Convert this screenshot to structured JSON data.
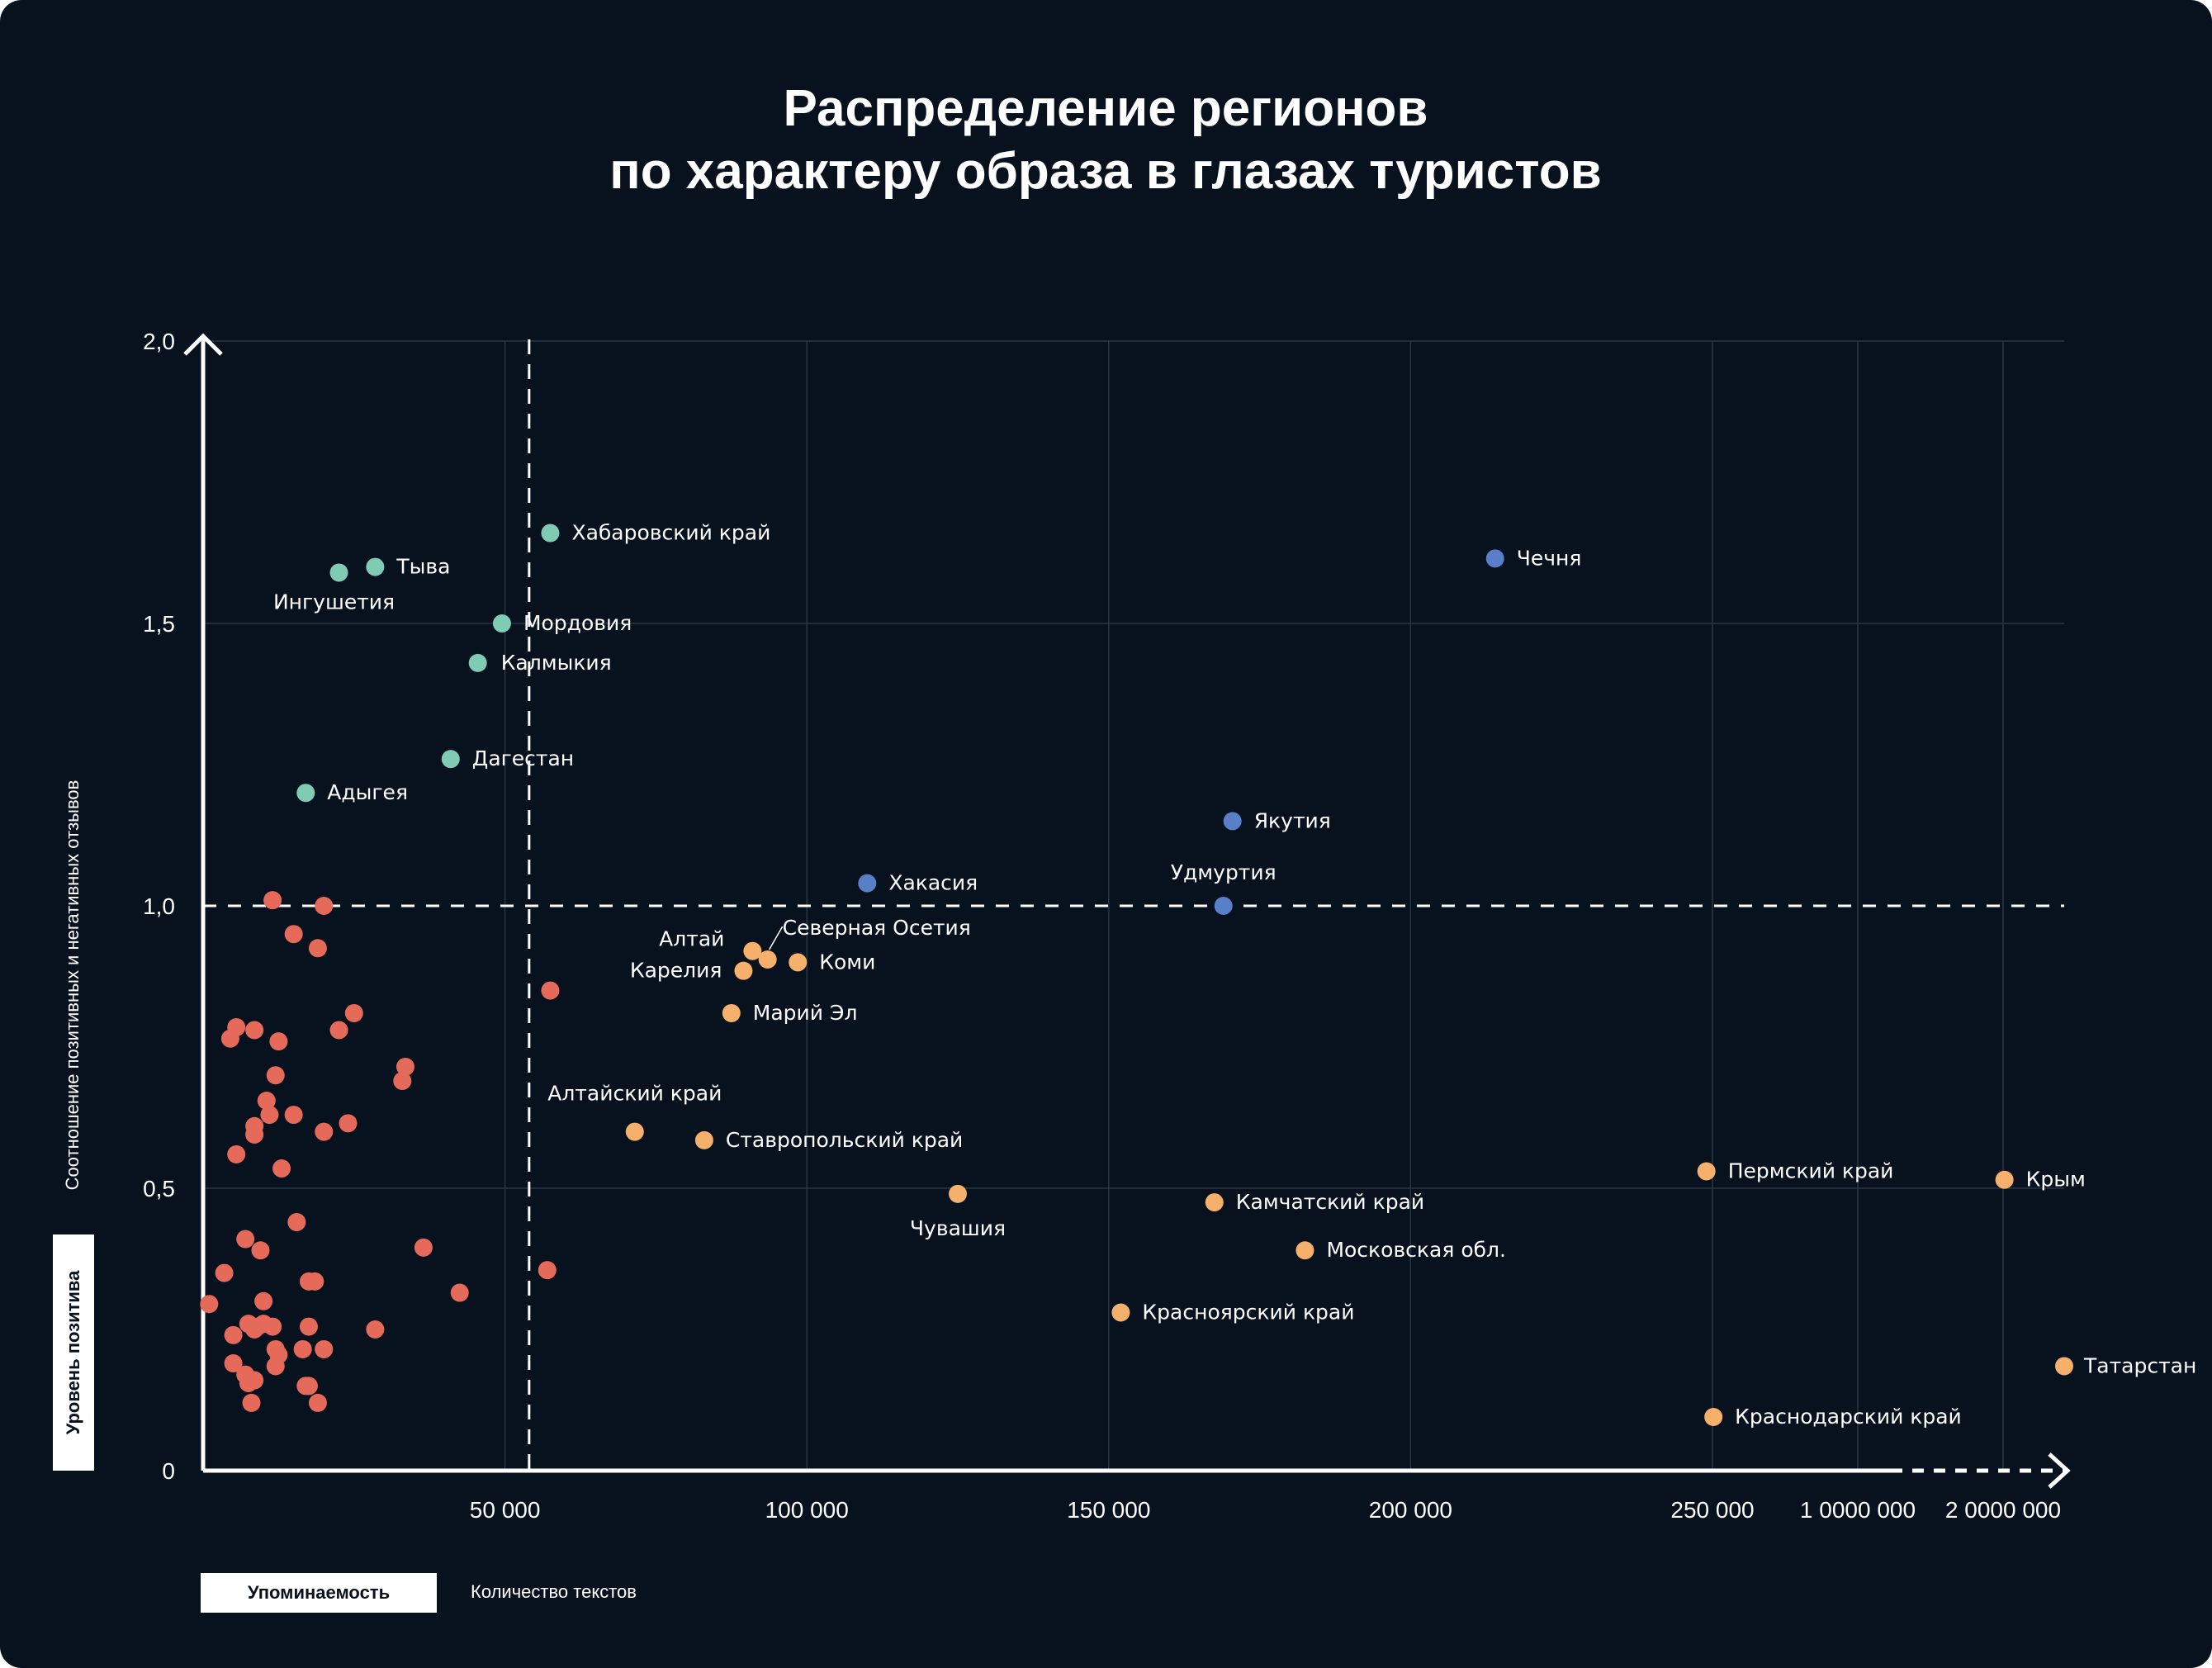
{
  "chart_data": {
    "type": "scatter",
    "title_lines": [
      "Распределение регионов",
      "по характеру образа в глазах туристов"
    ],
    "ylabel": "Соотношение позитивных и негативных отзывов",
    "ylabel_box": "Уровень позитива",
    "xlabel_box": "Упоминаемость",
    "xlabel": "Количество текстов",
    "x_tick_labels": [
      "50 000",
      "100 000",
      "150 000",
      "200 000",
      "250 000",
      "1 0000 000",
      "2 0000 000"
    ],
    "y_tick_labels": [
      "0",
      "0,5",
      "1,0",
      "1,5",
      "2,0"
    ],
    "ylim": [
      0,
      2
    ],
    "grid": true,
    "thresholds": {
      "x": 54000,
      "y": 1.0
    },
    "colors": {
      "background": "#08111e",
      "teal": "#7fcbb3",
      "blue": "#5a7fc9",
      "orange": "#f5b16b",
      "red": "#e66a5a"
    },
    "series": [
      {
        "color": "teal",
        "points": [
          {
            "x": 57500,
            "y": 1.66,
            "label": "Хабаровский край"
          },
          {
            "x": 28500,
            "y": 1.6,
            "label": "Тыва"
          },
          {
            "x": 22500,
            "y": 1.59,
            "label": "Ингушетия"
          },
          {
            "x": 49500,
            "y": 1.5,
            "label": "Мордовия"
          },
          {
            "x": 45500,
            "y": 1.43,
            "label": "Калмыкия"
          },
          {
            "x": 41000,
            "y": 1.26,
            "label": "Дагестан"
          },
          {
            "x": 17000,
            "y": 1.2,
            "label": "Адыгея"
          }
        ]
      },
      {
        "color": "blue",
        "points": [
          {
            "x": 214000,
            "y": 1.615,
            "label": "Чечня"
          },
          {
            "x": 170500,
            "y": 1.15,
            "label": "Якутия"
          },
          {
            "x": 110000,
            "y": 1.04,
            "label": "Хакасия"
          },
          {
            "x": 169000,
            "y": 1.0,
            "label": "Удмуртия"
          }
        ]
      },
      {
        "color": "orange",
        "points": [
          {
            "x": 91000,
            "y": 0.92,
            "label": "Алтай"
          },
          {
            "x": 93500,
            "y": 0.905,
            "label": "Северная Осетия"
          },
          {
            "x": 98500,
            "y": 0.9,
            "label": "Коми"
          },
          {
            "x": 89500,
            "y": 0.885,
            "label": "Карелия"
          },
          {
            "x": 87500,
            "y": 0.81,
            "label": "Марий Эл"
          },
          {
            "x": 71500,
            "y": 0.6,
            "label": "Алтайский край"
          },
          {
            "x": 83000,
            "y": 0.585,
            "label": "Ставропольский край"
          },
          {
            "x": 125000,
            "y": 0.49,
            "label": "Чувашия"
          },
          {
            "x": 167500,
            "y": 0.475,
            "label": "Камчатский край"
          },
          {
            "x": 182500,
            "y": 0.39,
            "label": "Московская обл."
          },
          {
            "x": 152000,
            "y": 0.28,
            "label": "Красноярский край"
          },
          {
            "x": 249000,
            "y": 0.53,
            "label": "Пермский край"
          },
          {
            "x": 2030000,
            "y": 0.515,
            "label": "Крым"
          },
          {
            "x": 5500000,
            "y": 0.185,
            "label": "Татарстан"
          },
          {
            "x": 255000,
            "y": 0.095,
            "label": "Краснодарский край"
          }
        ]
      },
      {
        "color": "red",
        "points": [
          {
            "x": 11500,
            "y": 1.01
          },
          {
            "x": 20000,
            "y": 1.0
          },
          {
            "x": 15000,
            "y": 0.95
          },
          {
            "x": 19000,
            "y": 0.925
          },
          {
            "x": 57500,
            "y": 0.85
          },
          {
            "x": 25000,
            "y": 0.81
          },
          {
            "x": 5500,
            "y": 0.785
          },
          {
            "x": 8500,
            "y": 0.78
          },
          {
            "x": 22500,
            "y": 0.78
          },
          {
            "x": 4500,
            "y": 0.765
          },
          {
            "x": 12500,
            "y": 0.76
          },
          {
            "x": 33500,
            "y": 0.715
          },
          {
            "x": 12000,
            "y": 0.7
          },
          {
            "x": 33000,
            "y": 0.69
          },
          {
            "x": 10500,
            "y": 0.655
          },
          {
            "x": 11000,
            "y": 0.63
          },
          {
            "x": 15000,
            "y": 0.63
          },
          {
            "x": 24000,
            "y": 0.615
          },
          {
            "x": 8500,
            "y": 0.61
          },
          {
            "x": 20000,
            "y": 0.6
          },
          {
            "x": 8500,
            "y": 0.595
          },
          {
            "x": 5500,
            "y": 0.56
          },
          {
            "x": 13000,
            "y": 0.535
          },
          {
            "x": 15500,
            "y": 0.44
          },
          {
            "x": 7000,
            "y": 0.41
          },
          {
            "x": 36500,
            "y": 0.395
          },
          {
            "x": 9500,
            "y": 0.39
          },
          {
            "x": 57000,
            "y": 0.355
          },
          {
            "x": 3500,
            "y": 0.35
          },
          {
            "x": 17500,
            "y": 0.335
          },
          {
            "x": 18500,
            "y": 0.335
          },
          {
            "x": 42500,
            "y": 0.315
          },
          {
            "x": 10000,
            "y": 0.3
          },
          {
            "x": 1000,
            "y": 0.295
          },
          {
            "x": 7500,
            "y": 0.26
          },
          {
            "x": 10000,
            "y": 0.26
          },
          {
            "x": 11500,
            "y": 0.255
          },
          {
            "x": 9000,
            "y": 0.255
          },
          {
            "x": 17500,
            "y": 0.255
          },
          {
            "x": 8500,
            "y": 0.25
          },
          {
            "x": 28500,
            "y": 0.25
          },
          {
            "x": 5000,
            "y": 0.24
          },
          {
            "x": 12000,
            "y": 0.215
          },
          {
            "x": 16500,
            "y": 0.215
          },
          {
            "x": 20000,
            "y": 0.215
          },
          {
            "x": 12500,
            "y": 0.205
          },
          {
            "x": 5000,
            "y": 0.19
          },
          {
            "x": 12000,
            "y": 0.185
          },
          {
            "x": 7000,
            "y": 0.17
          },
          {
            "x": 8000,
            "y": 0.16
          },
          {
            "x": 8500,
            "y": 0.16
          },
          {
            "x": 7500,
            "y": 0.155
          },
          {
            "x": 17000,
            "y": 0.15
          },
          {
            "x": 17500,
            "y": 0.15
          },
          {
            "x": 8000,
            "y": 0.12
          },
          {
            "x": 19000,
            "y": 0.12
          }
        ]
      }
    ]
  }
}
